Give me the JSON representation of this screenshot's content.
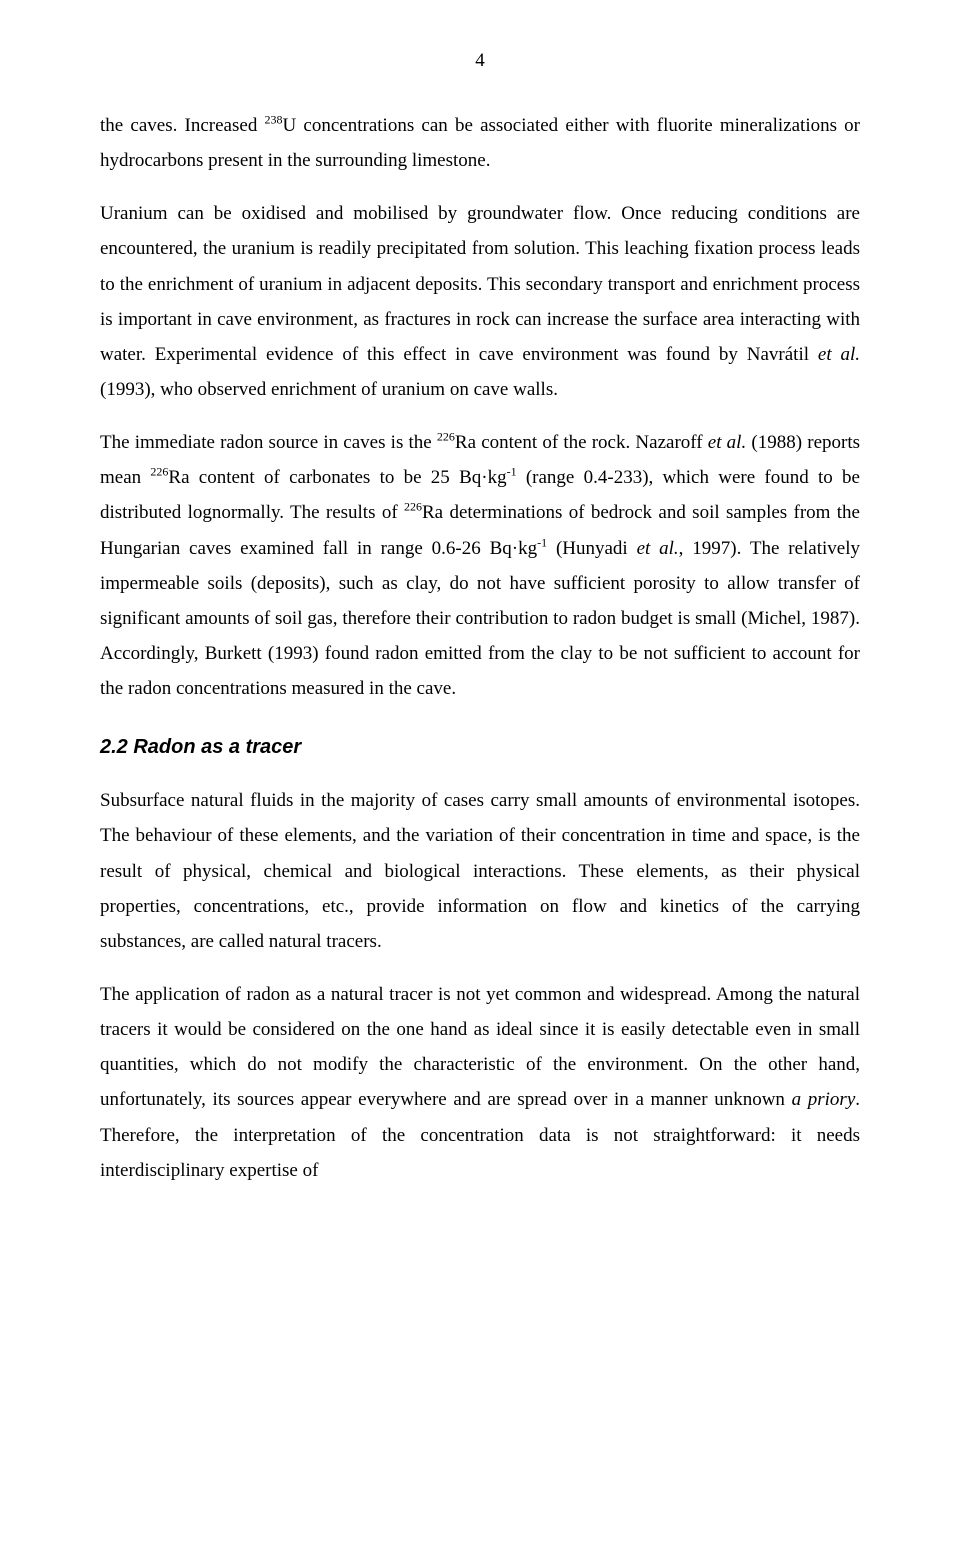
{
  "page_number": "4",
  "para1_a": "the caves. Increased ",
  "para1_sup1": "238",
  "para1_b": "U concentrations can be associated either with fluorite mineralizations or hydrocarbons present in the surrounding limestone.",
  "para2_a": "Uranium can be oxidised and mobilised by groundwater flow. Once reducing conditions are encountered, the uranium is readily precipitated from solution. This leaching fixation process leads to the enrichment of uranium in adjacent deposits. This secondary transport and enrichment process is important in cave environment, as fractures in rock can increase the surface area interacting with water. Experimental evidence of this effect in cave environment was found by Navrátil ",
  "para2_etal1": "et al.",
  "para2_b": " (1993), who observed enrichment of uranium on cave walls.",
  "para3_a": "The immediate radon source in caves is the ",
  "para3_sup1": "226",
  "para3_b": "Ra content of the rock. Nazaroff ",
  "para3_etal1": "et al.",
  "para3_c": " (1988) reports mean ",
  "para3_sup2": "226",
  "para3_d": "Ra content of carbonates to be 25 Bq·kg",
  "para3_sup3": "-1",
  "para3_e": " (range 0.4-233), which were found to be distributed lognormally. The results of ",
  "para3_sup4": "226",
  "para3_f": "Ra determinations of bedrock and soil samples from the Hungarian caves examined fall in range 0.6-26 Bq·kg",
  "para3_sup5": "-1",
  "para3_g": " (Hunyadi ",
  "para3_etal2": "et al.",
  "para3_h": ", 1997). The relatively impermeable soils (deposits), such as clay, do not have sufficient porosity to allow transfer of significant amounts of soil gas, therefore their contribution to radon budget is small (Michel, 1987). Accordingly, Burkett (1993) found radon emitted from the clay to be not sufficient to account for the radon concentrations measured in the cave.",
  "section_heading": "2.2  Radon as a tracer",
  "para4": "Subsurface natural fluids in the majority of cases carry small amounts of environmental isotopes. The behaviour of these elements, and the variation of their concentration in time and space, is the result of physical, chemical and biological interactions. These elements, as their physical properties, concentrations, etc., provide information on flow and kinetics of the carrying substances, are called natural tracers.",
  "para5_a": "The application of radon as a natural tracer is not yet common and widespread. Among the natural tracers it would be considered on the one hand as ideal since it is easily detectable even in small quantities, which do not modify the characteristic of the environment. On the other hand, unfortunately, its sources appear everywhere and are spread over in a manner unknown ",
  "para5_italic": "a priory",
  "para5_b": ". Therefore, the interpretation of the concentration data is not straightforward: it needs interdisciplinary expertise of"
}
